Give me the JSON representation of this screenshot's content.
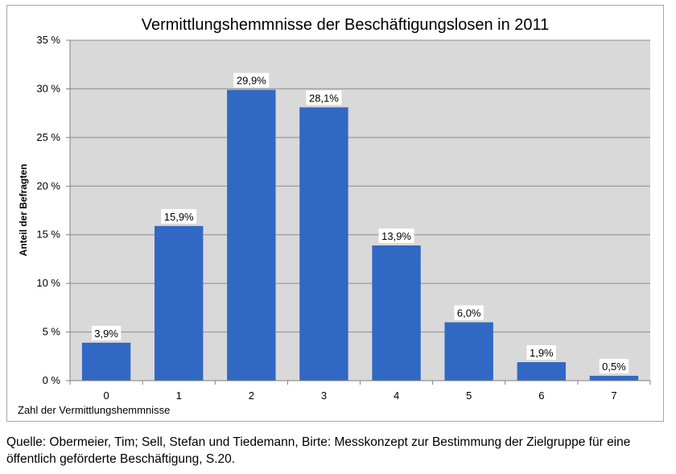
{
  "chart_data": {
    "type": "bar",
    "title": "Vermittlungshemmnisse der Beschäftigungslosen in 2011",
    "xlabel": "Zahl der Vermittlungshemmnisse",
    "ylabel": "Anteil der Befragten",
    "categories": [
      "0",
      "1",
      "2",
      "3",
      "4",
      "5",
      "6",
      "7"
    ],
    "values": [
      3.9,
      15.9,
      29.9,
      28.1,
      13.9,
      6.0,
      1.9,
      0.5
    ],
    "data_labels": [
      "3,9%",
      "15,9%",
      "29,9%",
      "28,1%",
      "13,9%",
      "6,0%",
      "1,9%",
      "0,5%"
    ],
    "ylim": [
      0,
      35
    ],
    "yticks": [
      0,
      5,
      10,
      15,
      20,
      25,
      30,
      35
    ],
    "ytick_labels": [
      "0 %",
      "5 %",
      "10 %",
      "15 %",
      "20 %",
      "25 %",
      "30 %",
      "35 %"
    ],
    "grid": true,
    "legend": "none",
    "colors": {
      "bar": "#3068c4",
      "plot_bg": "#d9d9d9",
      "grid": "#8c8c8c"
    }
  },
  "source_note": "Quelle: Obermeier, Tim; Sell, Stefan und Tiedemann, Birte: Messkonzept zur Bestimmung der Zielgruppe für eine öffentlich geförderte Beschäftigung, S.20."
}
